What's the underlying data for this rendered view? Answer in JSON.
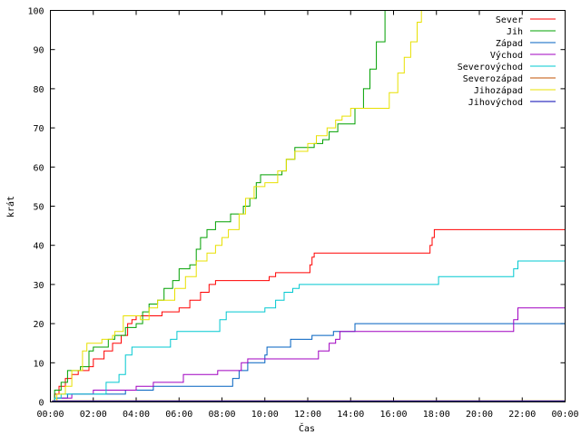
{
  "chart_data": {
    "type": "line",
    "xlabel": "Čas",
    "ylabel": "krát",
    "x_ticks": [
      "00:00",
      "02:00",
      "04:00",
      "06:00",
      "08:00",
      "10:00",
      "12:00",
      "14:00",
      "16:00",
      "18:00",
      "20:00",
      "22:00",
      "00:00"
    ],
    "xlim": [
      0,
      24
    ],
    "ylim": [
      0,
      100
    ],
    "y_ticks": [
      0,
      10,
      20,
      30,
      40,
      50,
      60,
      70,
      80,
      90,
      100
    ],
    "grid": false,
    "legend_position": "top-right",
    "series": [
      {
        "name": "Sever",
        "color": "#ff0000",
        "points": [
          [
            0,
            0
          ],
          [
            0.2,
            2
          ],
          [
            0.4,
            4
          ],
          [
            0.7,
            6
          ],
          [
            1,
            7
          ],
          [
            1.3,
            8
          ],
          [
            1.8,
            9
          ],
          [
            2,
            11
          ],
          [
            2.5,
            13
          ],
          [
            2.9,
            15
          ],
          [
            3.3,
            17
          ],
          [
            3.6,
            20
          ],
          [
            3.8,
            21
          ],
          [
            4,
            22
          ],
          [
            5,
            22
          ],
          [
            5.2,
            23
          ],
          [
            6,
            24
          ],
          [
            6.5,
            26
          ],
          [
            7,
            28
          ],
          [
            7.4,
            30
          ],
          [
            7.7,
            31
          ],
          [
            10,
            31
          ],
          [
            10.2,
            32
          ],
          [
            10.5,
            33
          ],
          [
            12,
            33
          ],
          [
            12.1,
            35
          ],
          [
            12.2,
            37
          ],
          [
            12.3,
            38
          ],
          [
            17.5,
            38
          ],
          [
            17.7,
            40
          ],
          [
            17.8,
            42
          ],
          [
            17.9,
            44
          ],
          [
            24,
            44
          ]
        ]
      },
      {
        "name": "Jih",
        "color": "#00a000",
        "points": [
          [
            0,
            0
          ],
          [
            0.2,
            3
          ],
          [
            0.5,
            5
          ],
          [
            0.8,
            8
          ],
          [
            1.2,
            8
          ],
          [
            1.4,
            9
          ],
          [
            1.8,
            13
          ],
          [
            2,
            14
          ],
          [
            2.5,
            14
          ],
          [
            2.7,
            16
          ],
          [
            3,
            17
          ],
          [
            3.5,
            19
          ],
          [
            4,
            20
          ],
          [
            4.3,
            23
          ],
          [
            4.6,
            25
          ],
          [
            5,
            26
          ],
          [
            5.3,
            29
          ],
          [
            5.7,
            31
          ],
          [
            6,
            34
          ],
          [
            6.5,
            35
          ],
          [
            6.8,
            39
          ],
          [
            7,
            42
          ],
          [
            7.3,
            44
          ],
          [
            7.7,
            46
          ],
          [
            8.1,
            46
          ],
          [
            8.4,
            48
          ],
          [
            8.8,
            48
          ],
          [
            9,
            50
          ],
          [
            9.3,
            52
          ],
          [
            9.6,
            56
          ],
          [
            9.8,
            58
          ],
          [
            10,
            58
          ],
          [
            10.5,
            58
          ],
          [
            10.8,
            59
          ],
          [
            11,
            62
          ],
          [
            11.4,
            65
          ],
          [
            12,
            65
          ],
          [
            12.3,
            66
          ],
          [
            12.7,
            67
          ],
          [
            13,
            69
          ],
          [
            13.4,
            71
          ],
          [
            14,
            71
          ],
          [
            14.2,
            75
          ],
          [
            14.6,
            80
          ],
          [
            14.9,
            85
          ],
          [
            15.2,
            92
          ],
          [
            15.6,
            100
          ],
          [
            24,
            100
          ]
        ]
      },
      {
        "name": "Západ",
        "color": "#0060c0",
        "points": [
          [
            0,
            0
          ],
          [
            0.3,
            1
          ],
          [
            0.8,
            2
          ],
          [
            3,
            2
          ],
          [
            3.5,
            3
          ],
          [
            4.7,
            3
          ],
          [
            4.8,
            4
          ],
          [
            8.3,
            4
          ],
          [
            8.5,
            6
          ],
          [
            8.8,
            8
          ],
          [
            9.2,
            10
          ],
          [
            9.5,
            10
          ],
          [
            10,
            12
          ],
          [
            10.1,
            14
          ],
          [
            11,
            14
          ],
          [
            11.2,
            16
          ],
          [
            12,
            16
          ],
          [
            12.2,
            17
          ],
          [
            13,
            17
          ],
          [
            13.2,
            18
          ],
          [
            14,
            18
          ],
          [
            14.2,
            20
          ],
          [
            24,
            20
          ]
        ]
      },
      {
        "name": "Východ",
        "color": "#a000c0",
        "points": [
          [
            0,
            0
          ],
          [
            0.3,
            1
          ],
          [
            1,
            2
          ],
          [
            1.8,
            2
          ],
          [
            2,
            3
          ],
          [
            3.8,
            3
          ],
          [
            4,
            4
          ],
          [
            4.7,
            4
          ],
          [
            4.8,
            5
          ],
          [
            6,
            5
          ],
          [
            6.2,
            7
          ],
          [
            7.6,
            7
          ],
          [
            7.8,
            8
          ],
          [
            8.7,
            8
          ],
          [
            8.9,
            10
          ],
          [
            9.2,
            11
          ],
          [
            12.3,
            11
          ],
          [
            12.5,
            13
          ],
          [
            13,
            15
          ],
          [
            13.3,
            16
          ],
          [
            13.5,
            18
          ],
          [
            21.5,
            18
          ],
          [
            21.6,
            21
          ],
          [
            21.8,
            24
          ],
          [
            24,
            24
          ]
        ]
      },
      {
        "name": "Severovýchod",
        "color": "#00c8d0",
        "points": [
          [
            0,
            0
          ],
          [
            0.2,
            1
          ],
          [
            0.5,
            2
          ],
          [
            2.2,
            2
          ],
          [
            2.6,
            5
          ],
          [
            3.2,
            7
          ],
          [
            3.5,
            12
          ],
          [
            3.8,
            14
          ],
          [
            5.4,
            14
          ],
          [
            5.6,
            16
          ],
          [
            5.9,
            18
          ],
          [
            7.8,
            18
          ],
          [
            7.9,
            21
          ],
          [
            8.2,
            23
          ],
          [
            9.9,
            23
          ],
          [
            10,
            24
          ],
          [
            10.5,
            26
          ],
          [
            10.9,
            28
          ],
          [
            11,
            28
          ],
          [
            11.3,
            29
          ],
          [
            11.6,
            30
          ],
          [
            18,
            30
          ],
          [
            18.1,
            32
          ],
          [
            21.5,
            32
          ],
          [
            21.6,
            34
          ],
          [
            21.8,
            36
          ],
          [
            24,
            36
          ]
        ]
      },
      {
        "name": "Severozápad",
        "color": "#c05000",
        "points": [
          [
            0,
            0
          ],
          [
            0.1,
            0.3
          ],
          [
            24,
            0.3
          ]
        ]
      },
      {
        "name": "Jihozápad",
        "color": "#e8e000",
        "points": [
          [
            0,
            0
          ],
          [
            0.3,
            2
          ],
          [
            0.7,
            4
          ],
          [
            1,
            8
          ],
          [
            1.5,
            13
          ],
          [
            1.7,
            15
          ],
          [
            2.4,
            16
          ],
          [
            2.9,
            17
          ],
          [
            3,
            18
          ],
          [
            3.4,
            22
          ],
          [
            4,
            22
          ],
          [
            4.2,
            21
          ],
          [
            4.6,
            24
          ],
          [
            5,
            26
          ],
          [
            5.5,
            26
          ],
          [
            5.8,
            29
          ],
          [
            6.3,
            32
          ],
          [
            6.8,
            36
          ],
          [
            7.3,
            38
          ],
          [
            7.7,
            40
          ],
          [
            8,
            42
          ],
          [
            8.3,
            44
          ],
          [
            8.8,
            48
          ],
          [
            9.1,
            52
          ],
          [
            9.5,
            55
          ],
          [
            10,
            56
          ],
          [
            10.6,
            59
          ],
          [
            11,
            62
          ],
          [
            11.4,
            64
          ],
          [
            12,
            66
          ],
          [
            12.4,
            68
          ],
          [
            12.9,
            70
          ],
          [
            13.3,
            72
          ],
          [
            13.6,
            73
          ],
          [
            14,
            75
          ],
          [
            15.5,
            75
          ],
          [
            15.8,
            79
          ],
          [
            16.2,
            84
          ],
          [
            16.5,
            88
          ],
          [
            16.8,
            92
          ],
          [
            17.1,
            97
          ],
          [
            17.3,
            100
          ],
          [
            24,
            100
          ]
        ]
      },
      {
        "name": "Jihovýchod",
        "color": "#0000b0",
        "points": [
          [
            0,
            0
          ],
          [
            0.1,
            0.2
          ],
          [
            24,
            0.2
          ]
        ]
      }
    ]
  }
}
